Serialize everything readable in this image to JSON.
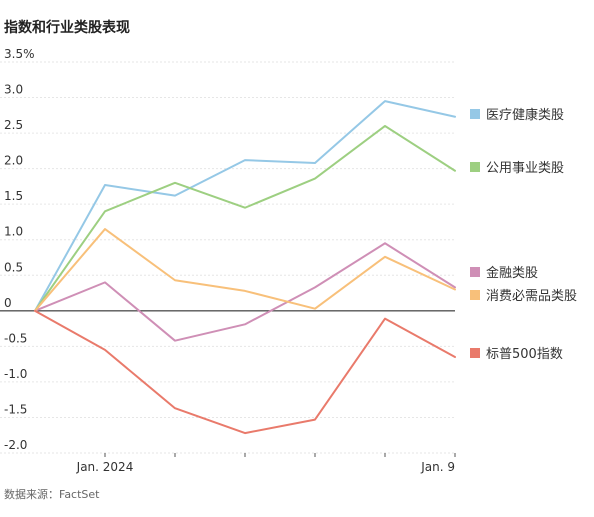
{
  "title": "指数和行业类股表现",
  "source": "数据来源：FactSet",
  "chart_data": {
    "type": "line",
    "title": "指数和行业类股表现",
    "ylim": [
      -2.0,
      3.5
    ],
    "y_ticks": [
      {
        "value": 3.5,
        "label": "3.5%"
      },
      {
        "value": 3.0,
        "label": "3.0"
      },
      {
        "value": 2.5,
        "label": "2.5"
      },
      {
        "value": 2.0,
        "label": "2.0"
      },
      {
        "value": 1.5,
        "label": "1.5"
      },
      {
        "value": 1.0,
        "label": "1.0"
      },
      {
        "value": 0.5,
        "label": "0.5"
      },
      {
        "value": 0,
        "label": "0"
      },
      {
        "value": -0.5,
        "label": "-0.5"
      },
      {
        "value": -1.0,
        "label": "-1.0"
      },
      {
        "value": -1.5,
        "label": "-1.5"
      },
      {
        "value": -2.0,
        "label": "-2.0"
      }
    ],
    "x_tick_labels": [
      {
        "index": 1,
        "label": "Jan. 2024"
      },
      {
        "index": 6,
        "label": "Jan. 9"
      }
    ],
    "grid": "horizontal",
    "legend": "right",
    "series": [
      {
        "name": "医疗健康类股",
        "color": "#95c8e6",
        "values": [
          0,
          1.77,
          1.62,
          2.12,
          2.08,
          2.95,
          2.73
        ]
      },
      {
        "name": "公用事业类股",
        "color": "#9dcf81",
        "values": [
          0,
          1.4,
          1.8,
          1.45,
          1.86,
          2.6,
          1.97
        ]
      },
      {
        "name": "金融类股",
        "color": "#cf8fb6",
        "values": [
          0,
          0.4,
          -0.42,
          -0.19,
          0.33,
          0.95,
          0.33
        ]
      },
      {
        "name": "消费必需品类股",
        "color": "#f8c07a",
        "values": [
          0,
          1.15,
          0.43,
          0.28,
          0.03,
          0.76,
          0.3
        ]
      },
      {
        "name": "标普500指数",
        "color": "#e97a6b",
        "values": [
          0,
          -0.55,
          -1.37,
          -1.72,
          -1.53,
          -0.11,
          -0.65
        ]
      }
    ]
  }
}
